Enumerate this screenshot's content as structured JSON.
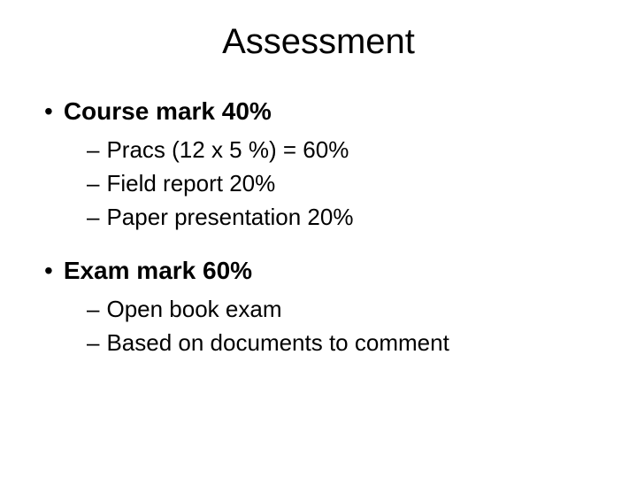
{
  "slide": {
    "title": "Assessment",
    "title_fontsize": 40,
    "background_color": "#ffffff",
    "text_color": "#000000",
    "items": [
      {
        "label": "Course mark 40%",
        "bold": true,
        "fontsize": 28,
        "subitems": [
          {
            "label": "Pracs (12 x 5 %) = 60%",
            "fontsize": 26
          },
          {
            "label": "Field report 20%",
            "fontsize": 26
          },
          {
            "label": "Paper presentation 20%",
            "fontsize": 26
          }
        ]
      },
      {
        "label": "Exam mark 60%",
        "bold": true,
        "fontsize": 28,
        "subitems": [
          {
            "label": "Open book exam",
            "fontsize": 26
          },
          {
            "label": "Based on documents to comment",
            "fontsize": 26
          }
        ]
      }
    ]
  }
}
